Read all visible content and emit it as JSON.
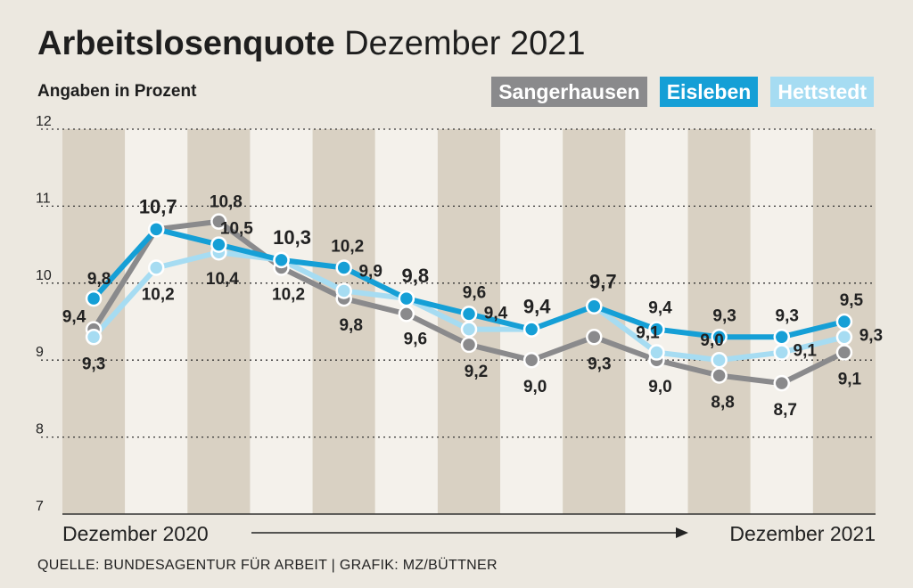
{
  "header": {
    "title_bold": "Arbeitslosenquote",
    "title_rest": "Dezember 2021",
    "subtitle": "Angaben in Prozent"
  },
  "footer": {
    "source": "QUELLE: BUNDESAGENTUR FÜR ARBEIT | GRAFIK: MZ/BÜTTNER"
  },
  "colors": {
    "background": "#ece8e0",
    "band": "#d9d1c3",
    "Sangerhausen": "#8a8a8c",
    "Eisleben": "#159fd6",
    "Hettstedt": "#a6dcf2"
  },
  "chart_data": {
    "type": "line",
    "x_start_label": "Dezember 2020",
    "x_end_label": "Dezember 2021",
    "ylim": [
      7,
      12
    ],
    "yticks": [
      7,
      8,
      9,
      10,
      11,
      12
    ],
    "grid": "dotted horizontal",
    "legend_position": "top-right",
    "series": [
      {
        "name": "Sangerhausen",
        "values": [
          9.4,
          10.7,
          10.8,
          10.2,
          9.8,
          9.6,
          9.2,
          9.0,
          9.3,
          9.0,
          8.8,
          8.7,
          9.1
        ],
        "labels": [
          "9,4",
          "",
          "10,8",
          "10,2",
          "9,8",
          "9,6",
          "9,2",
          "9,0",
          "9,3",
          "9,0",
          "8,8",
          "8,7",
          "9,1"
        ]
      },
      {
        "name": "Eisleben",
        "values": [
          9.8,
          10.7,
          10.5,
          10.3,
          10.2,
          9.8,
          9.6,
          9.4,
          9.7,
          9.4,
          9.3,
          9.3,
          9.5
        ],
        "labels": [
          "9,8",
          "10,7",
          "10,5",
          "10,3",
          "10,2",
          "9,8",
          "9,6",
          "9,4",
          "9,7",
          "9,4",
          "9,3",
          "9,3",
          "9,5"
        ]
      },
      {
        "name": "Hettstedt",
        "values": [
          9.3,
          10.2,
          10.4,
          10.3,
          9.9,
          9.8,
          9.4,
          9.4,
          9.7,
          9.1,
          9.0,
          9.1,
          9.3
        ],
        "labels": [
          "9,3",
          "10,2",
          "10,4",
          "",
          "9,9",
          "",
          "9,4",
          "",
          "",
          "9,1",
          "9,0",
          "9,1",
          "9,3"
        ]
      }
    ]
  }
}
